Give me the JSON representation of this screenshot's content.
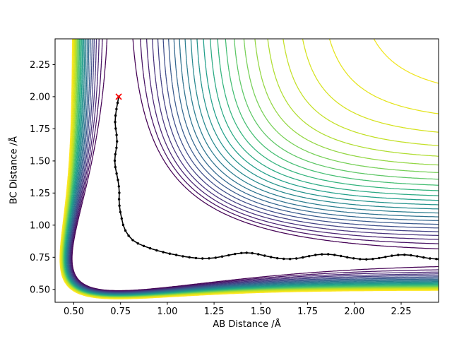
{
  "figure": {
    "background": "#ffffff"
  },
  "chart_data": {
    "type": "heatmap",
    "variant": "contour-lines",
    "title": "",
    "xlabel": "AB Distance /Å",
    "ylabel": "BC Distance /Å",
    "xlim": [
      0.4,
      2.45
    ],
    "ylim": [
      0.4,
      2.45
    ],
    "grid": false,
    "legend": "none",
    "xticks": {
      "values": [
        0.5,
        0.75,
        1.0,
        1.25,
        1.5,
        1.75,
        2.0,
        2.25
      ],
      "labels": [
        "0.50",
        "0.75",
        "1.00",
        "1.25",
        "1.50",
        "1.75",
        "2.00",
        "2.25"
      ]
    },
    "yticks": {
      "values": [
        0.5,
        0.75,
        1.0,
        1.25,
        1.5,
        1.75,
        2.0,
        2.25
      ],
      "labels": [
        "0.50",
        "0.75",
        "1.00",
        "1.25",
        "1.50",
        "1.75",
        "2.00",
        "2.25"
      ]
    },
    "colormap": {
      "name": "viridis",
      "anchors": [
        {
          "t": 0.0,
          "hex": "#440154"
        },
        {
          "t": 0.1,
          "hex": "#482878"
        },
        {
          "t": 0.2,
          "hex": "#3e4a89"
        },
        {
          "t": 0.3,
          "hex": "#31688e"
        },
        {
          "t": 0.4,
          "hex": "#26828e"
        },
        {
          "t": 0.5,
          "hex": "#1f9e89"
        },
        {
          "t": 0.6,
          "hex": "#35b779"
        },
        {
          "t": 0.7,
          "hex": "#6ece58"
        },
        {
          "t": 0.8,
          "hex": "#b5de2b"
        },
        {
          "t": 0.9,
          "hex": "#dfe318"
        },
        {
          "t": 1.0,
          "hex": "#fde725"
        }
      ]
    },
    "contours": {
      "description": "Potential energy surface: L-shaped valley along AB≈0.74 Å and BC≈0.74 Å, repulsive wall near axes (yellow), dissociation plateau at top right (yellow), valley floor purple",
      "levels_min": -0.98,
      "levels_max": -0.02,
      "levels_count": 25,
      "line_width": 1.25,
      "surface_model": {
        "kind": "sum-of-morse",
        "re": 0.74,
        "alpha": 2.8
      }
    },
    "trajectory": {
      "color": "#000000",
      "marker": "point",
      "points": [
        [
          0.74,
          2.0
        ],
        [
          0.734,
          1.952
        ],
        [
          0.728,
          1.903
        ],
        [
          0.723,
          1.853
        ],
        [
          0.721,
          1.803
        ],
        [
          0.724,
          1.752
        ],
        [
          0.729,
          1.702
        ],
        [
          0.731,
          1.652
        ],
        [
          0.728,
          1.602
        ],
        [
          0.722,
          1.552
        ],
        [
          0.719,
          1.502
        ],
        [
          0.722,
          1.452
        ],
        [
          0.729,
          1.402
        ],
        [
          0.736,
          1.352
        ],
        [
          0.741,
          1.302
        ],
        [
          0.743,
          1.252
        ],
        [
          0.742,
          1.202
        ],
        [
          0.744,
          1.152
        ],
        [
          0.749,
          1.102
        ],
        [
          0.756,
          1.052
        ],
        [
          0.764,
          1.002
        ],
        [
          0.776,
          0.958
        ],
        [
          0.793,
          0.918
        ],
        [
          0.815,
          0.884
        ],
        [
          0.843,
          0.858
        ],
        [
          0.874,
          0.838
        ],
        [
          0.908,
          0.82
        ],
        [
          0.943,
          0.804
        ],
        [
          0.978,
          0.79
        ],
        [
          1.013,
          0.778
        ],
        [
          1.048,
          0.768
        ],
        [
          1.083,
          0.758
        ],
        [
          1.118,
          0.75
        ],
        [
          1.153,
          0.744
        ],
        [
          1.188,
          0.741
        ],
        [
          1.223,
          0.742
        ],
        [
          1.258,
          0.747
        ],
        [
          1.293,
          0.756
        ],
        [
          1.328,
          0.766
        ],
        [
          1.362,
          0.776
        ],
        [
          1.396,
          0.783
        ],
        [
          1.424,
          0.785
        ],
        [
          1.454,
          0.782
        ],
        [
          1.486,
          0.774
        ],
        [
          1.52,
          0.763
        ],
        [
          1.554,
          0.752
        ],
        [
          1.588,
          0.743
        ],
        [
          1.622,
          0.738
        ],
        [
          1.656,
          0.737
        ],
        [
          1.69,
          0.741
        ],
        [
          1.724,
          0.749
        ],
        [
          1.758,
          0.759
        ],
        [
          1.792,
          0.768
        ],
        [
          1.826,
          0.773
        ],
        [
          1.86,
          0.774
        ],
        [
          1.894,
          0.769
        ],
        [
          1.928,
          0.76
        ],
        [
          1.962,
          0.75
        ],
        [
          1.996,
          0.742
        ],
        [
          2.03,
          0.736
        ],
        [
          2.064,
          0.734
        ],
        [
          2.098,
          0.737
        ],
        [
          2.132,
          0.744
        ],
        [
          2.166,
          0.753
        ],
        [
          2.2,
          0.762
        ],
        [
          2.234,
          0.768
        ],
        [
          2.268,
          0.77
        ],
        [
          2.302,
          0.766
        ],
        [
          2.336,
          0.758
        ],
        [
          2.37,
          0.749
        ],
        [
          2.404,
          0.741
        ],
        [
          2.438,
          0.737
        ],
        [
          2.45,
          0.736
        ]
      ]
    },
    "start_marker": {
      "symbol": "x",
      "color": "#ff0000",
      "x": 0.74,
      "y": 2.0
    }
  }
}
